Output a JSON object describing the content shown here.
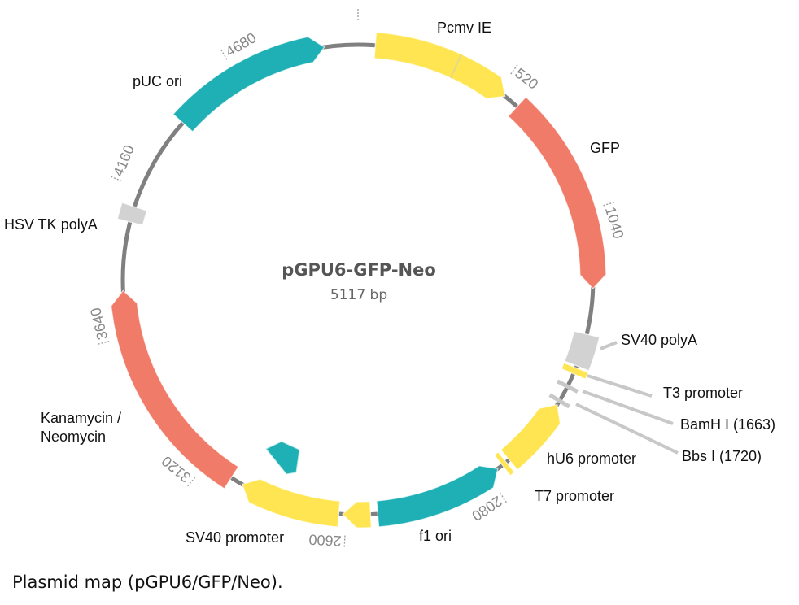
{
  "map": {
    "name": "pGPU6-GFP-Neo",
    "length_label": "5117 bp",
    "length_bp": 5117,
    "backbone_color": "#808080",
    "colors": {
      "yellow": "#ffe552",
      "teal": "#1fb0b5",
      "salmon": "#f07b68",
      "grey": "#d2d2d2"
    },
    "ticks": [
      520,
      1040,
      2080,
      2600,
      3120,
      3640,
      4160,
      4680
    ],
    "features": [
      {
        "label": "Pcmv IE",
        "start": 60,
        "end": 550,
        "split": 350,
        "direction": "forward",
        "color": "#ffe552"
      },
      {
        "label": "GFP",
        "start": 605,
        "end": 1310,
        "direction": "forward",
        "color": "#f07b68"
      },
      {
        "label": "SV40 polyA",
        "start": 1470,
        "end": 1585,
        "direction": "none",
        "color": "#d2d2d2"
      },
      {
        "label": "T3 promoter",
        "start": 1592,
        "end": 1615,
        "direction": "none",
        "color": "#ffe552"
      },
      {
        "label": "hU6 promoter",
        "start": 1735,
        "end": 1990,
        "direction": "reverse",
        "color": "#ffe552"
      },
      {
        "label": "T7 promoter",
        "start": 2003,
        "end": 2020,
        "direction": "none",
        "color": "#ffe552"
      },
      {
        "label": "f1 ori",
        "start": 2040,
        "end": 2490,
        "direction": "reverse",
        "color": "#1fb0b5"
      },
      {
        "label": "",
        "start": 2515,
        "end": 2612,
        "direction": "forward",
        "color": "#ffe552"
      },
      {
        "label": "SV40 promoter",
        "start": 2625,
        "end": 2978,
        "direction": "forward",
        "color": "#ffe552"
      },
      {
        "label": "Kanamycin /",
        "label2": "Neomycin",
        "start": 3022,
        "end": 3800,
        "direction": "forward",
        "color": "#f07b68"
      },
      {
        "label": "HSV TK polyA",
        "start": 4040,
        "end": 4095,
        "direction": "none",
        "color": "#d2d2d2"
      },
      {
        "label": "pUC ori",
        "start": 4433,
        "end": 5000,
        "direction": "forward",
        "color": "#1fb0b5"
      }
    ],
    "sites": [
      {
        "label": "BamH I (1663)",
        "position": 1663
      },
      {
        "label": "Bbs I (1720)",
        "position": 1720
      }
    ]
  },
  "caption": "Plasmid map (pGPU6/GFP/Neo)."
}
